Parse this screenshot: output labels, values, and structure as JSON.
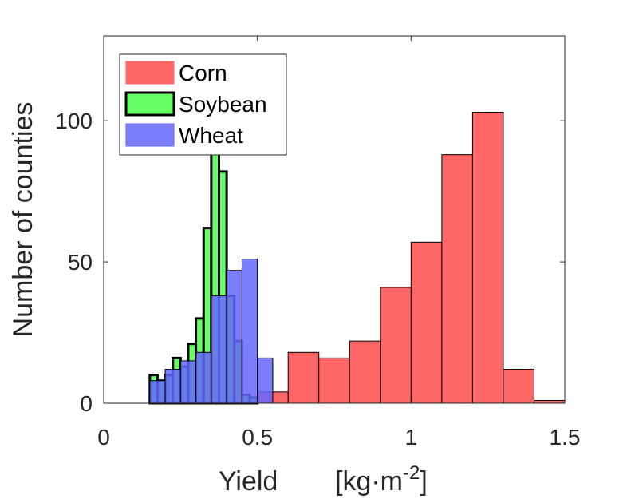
{
  "chart_data": {
    "type": "histogram",
    "xlabel": "Yield",
    "xlabel_units": "[kg·m",
    "xlabel_units_exponent": "-2",
    "xlabel_units_close": "]",
    "ylabel": "Number of counties",
    "xlim": [
      0,
      1.5
    ],
    "ylim": [
      0,
      130
    ],
    "xticks": [
      0,
      0.5,
      1,
      1.5
    ],
    "xtick_labels": [
      "0",
      "0.5",
      "1",
      "1.5"
    ],
    "yticks": [
      0,
      50,
      100
    ],
    "ytick_labels": [
      "0",
      "50",
      "100"
    ],
    "grid": false,
    "legend_position": "top-left",
    "series": [
      {
        "name": "Corn",
        "color": "#ff6666",
        "edge_color": "#000000",
        "bins": [
          {
            "x0": 0.4,
            "x1": 0.5,
            "count": 2
          },
          {
            "x0": 0.5,
            "x1": 0.6,
            "count": 4
          },
          {
            "x0": 0.6,
            "x1": 0.7,
            "count": 18
          },
          {
            "x0": 0.7,
            "x1": 0.8,
            "count": 16
          },
          {
            "x0": 0.8,
            "x1": 0.9,
            "count": 22
          },
          {
            "x0": 0.9,
            "x1": 1.0,
            "count": 41
          },
          {
            "x0": 1.0,
            "x1": 1.1,
            "count": 57
          },
          {
            "x0": 1.1,
            "x1": 1.2,
            "count": 88
          },
          {
            "x0": 1.2,
            "x1": 1.3,
            "count": 103
          },
          {
            "x0": 1.3,
            "x1": 1.4,
            "count": 12
          },
          {
            "x0": 1.4,
            "x1": 1.5,
            "count": 1
          }
        ]
      },
      {
        "name": "Soybean",
        "color": "#66ff66",
        "edge_color": "#000000",
        "bins": [
          {
            "x0": 0.15,
            "x1": 0.175,
            "count": 10
          },
          {
            "x0": 0.175,
            "x1": 0.2,
            "count": 8
          },
          {
            "x0": 0.2,
            "x1": 0.225,
            "count": 10
          },
          {
            "x0": 0.225,
            "x1": 0.25,
            "count": 16
          },
          {
            "x0": 0.25,
            "x1": 0.275,
            "count": 13
          },
          {
            "x0": 0.275,
            "x1": 0.3,
            "count": 21
          },
          {
            "x0": 0.3,
            "x1": 0.325,
            "count": 30
          },
          {
            "x0": 0.325,
            "x1": 0.35,
            "count": 62
          },
          {
            "x0": 0.35,
            "x1": 0.375,
            "count": 89
          },
          {
            "x0": 0.375,
            "x1": 0.4,
            "count": 82
          },
          {
            "x0": 0.4,
            "x1": 0.425,
            "count": 38
          },
          {
            "x0": 0.425,
            "x1": 0.45,
            "count": 22
          },
          {
            "x0": 0.45,
            "x1": 0.475,
            "count": 3
          },
          {
            "x0": 0.475,
            "x1": 0.5,
            "count": 2
          }
        ]
      },
      {
        "name": "Wheat",
        "color": "#6666ff",
        "edge_color": "#000000",
        "bins": [
          {
            "x0": 0.15,
            "x1": 0.2,
            "count": 8
          },
          {
            "x0": 0.2,
            "x1": 0.25,
            "count": 12
          },
          {
            "x0": 0.25,
            "x1": 0.3,
            "count": 15
          },
          {
            "x0": 0.3,
            "x1": 0.35,
            "count": 18
          },
          {
            "x0": 0.35,
            "x1": 0.4,
            "count": 38
          },
          {
            "x0": 0.4,
            "x1": 0.45,
            "count": 47
          },
          {
            "x0": 0.45,
            "x1": 0.5,
            "count": 51
          },
          {
            "x0": 0.5,
            "x1": 0.55,
            "count": 16
          }
        ]
      }
    ]
  }
}
